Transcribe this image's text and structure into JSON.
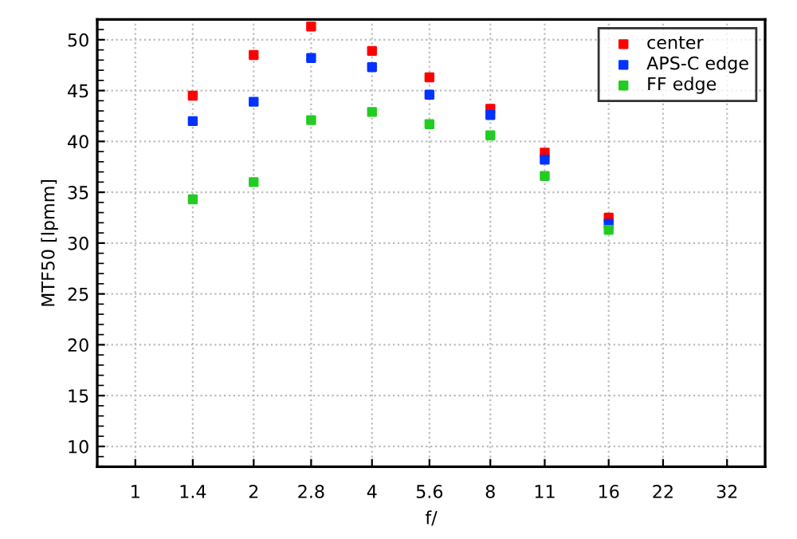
{
  "chart_data": {
    "type": "scatter",
    "xlabel": "f/",
    "ylabel": "MTF50 [lpmm]",
    "log": "x",
    "xlim": [
      0.8,
      40
    ],
    "xticks": [
      1,
      1.4,
      2,
      2.8,
      4,
      5.6,
      8,
      11,
      16,
      22,
      32
    ],
    "ylim": [
      8,
      52
    ],
    "yticks": [
      10,
      15,
      20,
      25,
      30,
      35,
      40,
      45,
      50
    ],
    "grid": true,
    "legend": "top right",
    "marker": "square",
    "x": [
      1.4,
      2,
      2.8,
      4,
      5.6,
      8,
      11,
      16
    ],
    "series": [
      {
        "name": "center",
        "color": "#ff0000",
        "values": [
          44.5,
          48.5,
          51.3,
          48.9,
          46.3,
          43.2,
          38.9,
          32.5
        ]
      },
      {
        "name": "APS-C edge",
        "color": "#0033ff",
        "values": [
          42.0,
          43.9,
          48.2,
          47.3,
          44.6,
          42.6,
          38.2,
          31.9
        ]
      },
      {
        "name": "FF edge",
        "color": "#22cc22",
        "values": [
          34.3,
          36.0,
          42.1,
          42.9,
          41.7,
          40.6,
          36.6,
          31.3
        ]
      }
    ]
  }
}
